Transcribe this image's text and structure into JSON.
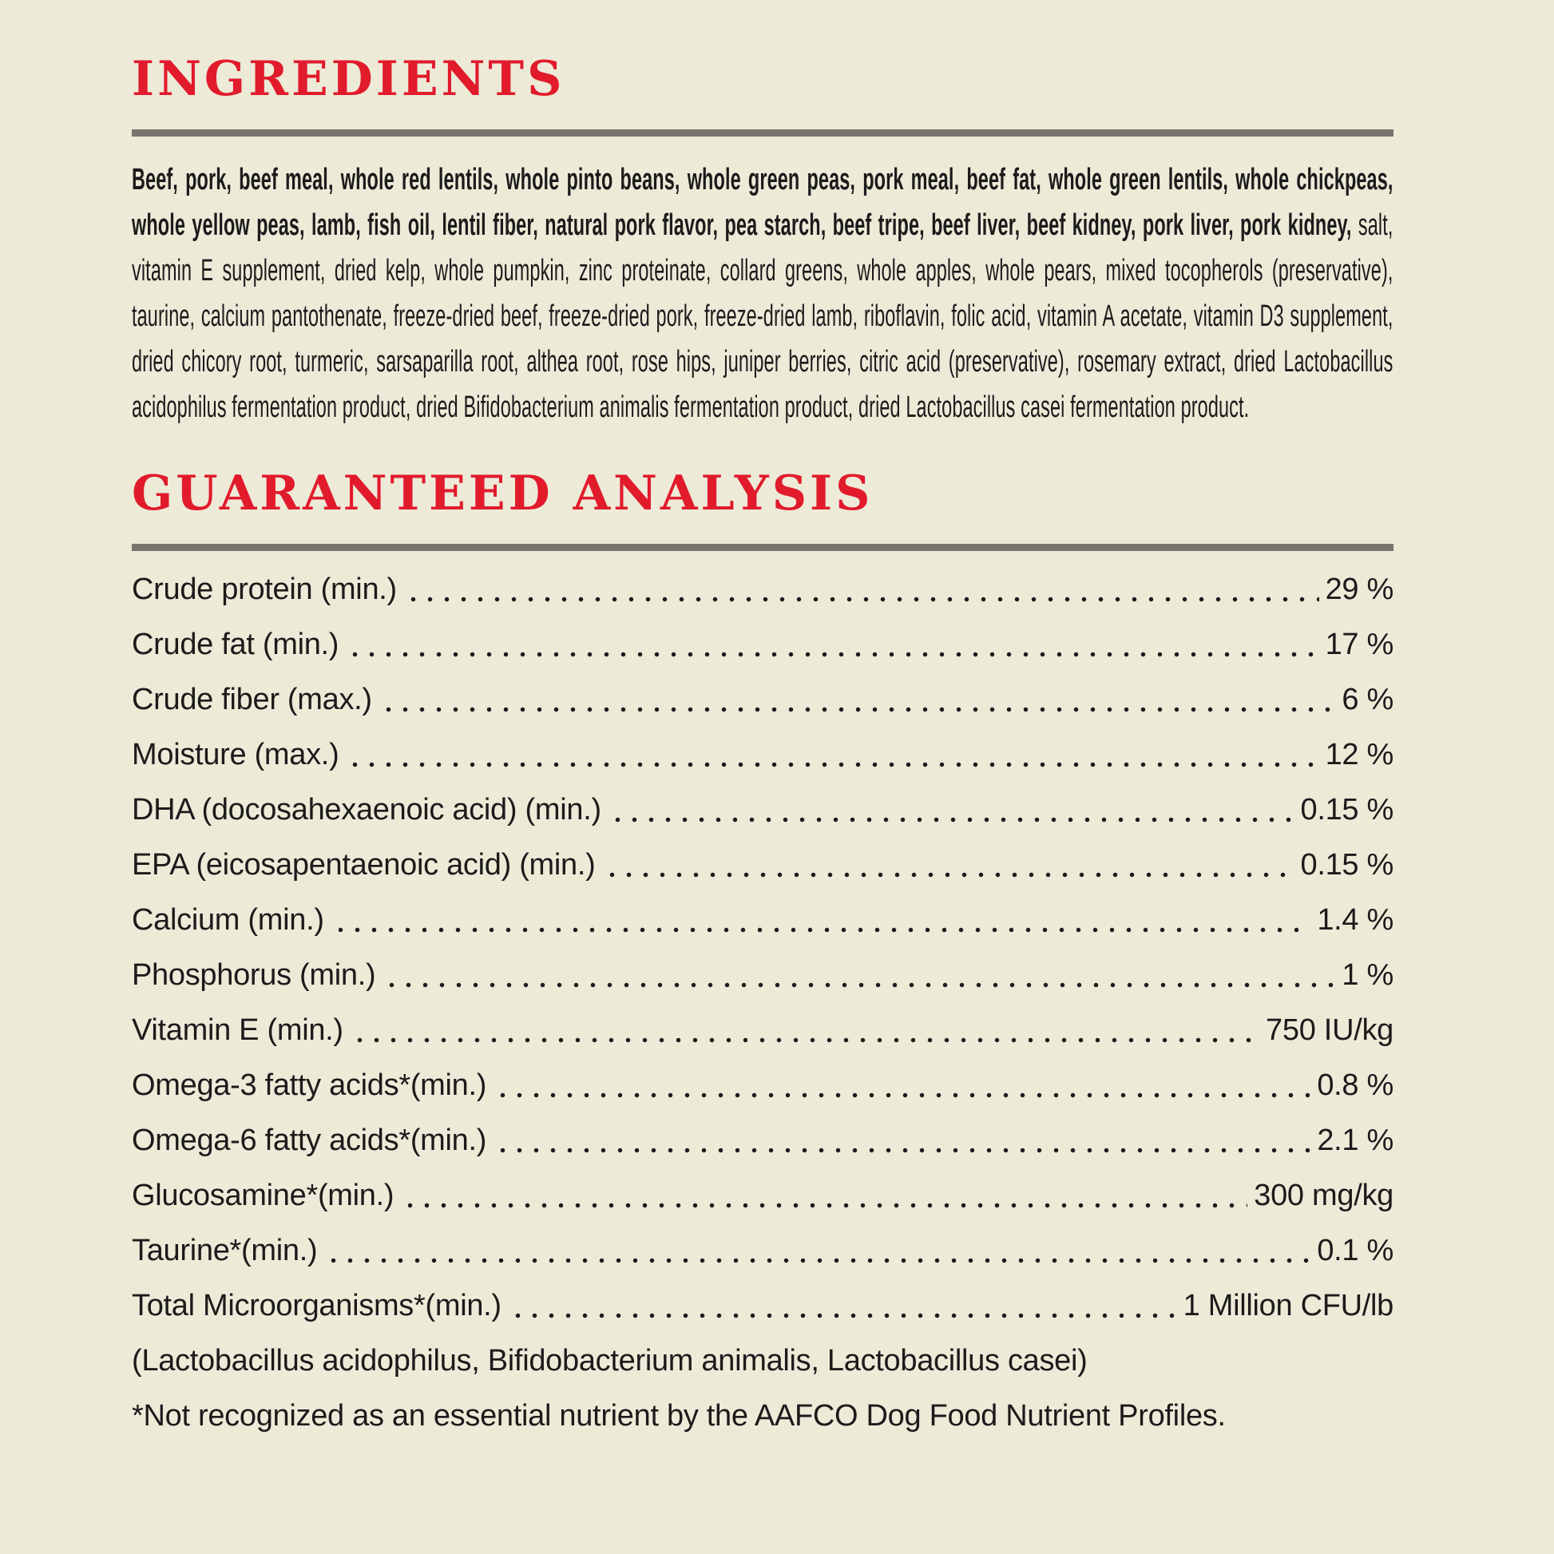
{
  "page": {
    "background_color": "#edead8",
    "heading_color": "#e11b2c",
    "rule_color": "#77756f",
    "text_color": "#1b1b1b"
  },
  "ingredients": {
    "heading": "INGREDIENTS",
    "bold_text": "Beef, pork, beef meal, whole red lentils, whole pinto beans, whole green peas, pork meal, beef fat, whole green lentils, whole chickpeas, whole yellow peas, lamb, fish oil, lentil fiber, natural pork flavor, pea starch, beef tripe, beef liver, beef kidney, pork liver, pork kidney,",
    "regular_text": " salt, vitamin E supplement, dried kelp, whole pumpkin, zinc proteinate, collard greens, whole apples, whole pears, mixed tocopherols (preservative), taurine, calcium pantothenate, freeze-dried beef, freeze-dried pork, freeze-dried lamb, riboflavin, folic acid, vitamin A acetate, vitamin D3 supplement, dried chicory root, turmeric, sarsaparilla root, althea root, rose hips, juniper berries, citric acid (preservative), rosemary extract, dried Lactobacillus acidophilus fermentation product, dried Bifidobacterium animalis fermentation product, dried Lactobacillus casei fermentation product."
  },
  "guaranteed_analysis": {
    "heading": "GUARANTEED ANALYSIS",
    "rows": [
      {
        "label": "Crude protein (min.)",
        "value": "29 %"
      },
      {
        "label": "Crude fat (min.)",
        "value": "17 %"
      },
      {
        "label": "Crude fiber (max.)",
        "value": "6 %"
      },
      {
        "label": "Moisture (max.)",
        "value": "12 %"
      },
      {
        "label": "DHA (docosahexaenoic acid) (min.)",
        "value": "0.15 %"
      },
      {
        "label": "EPA (eicosapentaenoic acid) (min.)",
        "value": "0.15 %"
      },
      {
        "label": "Calcium (min.)",
        "value": "1.4 %"
      },
      {
        "label": "Phosphorus (min.)",
        "value": "1 %"
      },
      {
        "label": "Vitamin E (min.)",
        "value": "750 IU/kg"
      },
      {
        "label": "Omega-3 fatty acids*(min.)",
        "value": "0.8 %"
      },
      {
        "label": "Omega-6 fatty acids*(min.)",
        "value": "2.1 %"
      },
      {
        "label": "Glucosamine*(min.)",
        "value": "300 mg/kg"
      },
      {
        "label": "Taurine*(min.)",
        "value": "0.1 %"
      },
      {
        "label": "Total Microorganisms*(min.)",
        "value": "1 Million CFU/lb"
      }
    ],
    "strains_note": "(Lactobacillus acidophilus, Bifidobacterium animalis, Lactobacillus casei)",
    "footnote": "*Not recognized as an essential nutrient by the AAFCO Dog Food Nutrient Profiles."
  }
}
